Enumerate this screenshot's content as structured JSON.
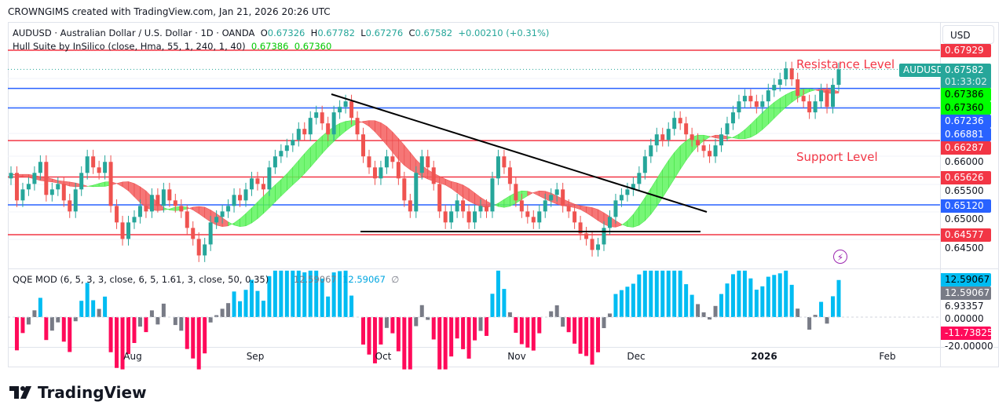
{
  "header": "CROWNGIMS created with TradingView.com, Jan 21, 2026 20:26 UTC",
  "symbol_legend": {
    "title": "AUDUSD · Australian Dollar / U.S. Dollar · 1D · OANDA",
    "o_label": "O",
    "o": "0.67326",
    "h_label": "H",
    "h": "0.67782",
    "l_label": "L",
    "l": "0.67276",
    "c_label": "C",
    "c": "0.67582",
    "change": "+0.00210 (+0.31%)"
  },
  "hull_legend": {
    "title": "Hull Suite by InSilico (close, Hma, 55, 1, 240, 1, 40)",
    "v1": "0.67386",
    "v2": "0.67360"
  },
  "qqe_legend": {
    "title": "QQE MOD (6, 5, 3, 3, close, 6, 5, 1.61, 3, close, 50, 0.35)",
    "v1": "12.59067",
    "v2": "12.59067",
    "v3": "∅"
  },
  "currency_button": "USD",
  "symbol_tag": "AUDUSD",
  "annotations": {
    "resistance": "Resistance Level",
    "support": "Support Level"
  },
  "price_labels": [
    {
      "value": "0.67929",
      "color": "#f23645"
    },
    {
      "value": "0.67582",
      "sub": "01:33:02",
      "color": "#26a69a"
    },
    {
      "value": "0.67386",
      "color": "#00ff00",
      "text": "#000"
    },
    {
      "value": "0.67360",
      "color": "#00ff00",
      "text": "#000"
    },
    {
      "value": "0.67236",
      "color": "#2962ff"
    },
    {
      "value": "0.66881",
      "color": "#2962ff"
    },
    {
      "value": "0.66287",
      "color": "#f23645"
    },
    {
      "value": "0.65626",
      "color": "#f23645"
    },
    {
      "value": "0.65120",
      "color": "#2962ff"
    },
    {
      "value": "0.64577",
      "color": "#f23645"
    }
  ],
  "price_ticks": [
    "0.66000",
    "0.65500",
    "0.65000",
    "0.64500"
  ],
  "qqe_labels": [
    {
      "value": "12.59067",
      "color": "#00bcf2",
      "text": "#000"
    },
    {
      "value": "12.59067",
      "color": "#787b86",
      "text": "#fff"
    },
    {
      "value": "-11.73825",
      "color": "#ff0a5a",
      "text": "#fff"
    }
  ],
  "qqe_ticks": [
    "6.93357",
    "0.00000",
    "-20.00000"
  ],
  "time_labels": [
    "Aug",
    "Sep",
    "Oct",
    "Nov",
    "Dec",
    "2026",
    "Feb"
  ],
  "footer_logo": "TradingView",
  "chart_data": {
    "type": "candlestick",
    "symbol": "AUDUSD",
    "interval": "1D",
    "x_range": [
      "Jul 2025",
      "Jan 21, 2026"
    ],
    "ylim": [
      0.641,
      0.6815
    ],
    "closes": [
      0.657,
      0.652,
      0.654,
      0.655,
      0.657,
      0.659,
      0.653,
      0.654,
      0.655,
      0.652,
      0.65,
      0.654,
      0.657,
      0.66,
      0.658,
      0.657,
      0.659,
      0.651,
      0.648,
      0.645,
      0.648,
      0.649,
      0.651,
      0.65,
      0.653,
      0.651,
      0.654,
      0.652,
      0.651,
      0.65,
      0.647,
      0.645,
      0.642,
      0.644,
      0.648,
      0.649,
      0.65,
      0.651,
      0.653,
      0.652,
      0.654,
      0.656,
      0.655,
      0.654,
      0.658,
      0.66,
      0.661,
      0.662,
      0.663,
      0.665,
      0.664,
      0.667,
      0.668,
      0.666,
      0.664,
      0.668,
      0.669,
      0.67,
      0.667,
      0.664,
      0.66,
      0.658,
      0.656,
      0.658,
      0.66,
      0.659,
      0.656,
      0.652,
      0.65,
      0.657,
      0.66,
      0.658,
      0.655,
      0.65,
      0.648,
      0.65,
      0.652,
      0.65,
      0.648,
      0.65,
      0.651,
      0.65,
      0.656,
      0.66,
      0.658,
      0.655,
      0.652,
      0.65,
      0.649,
      0.648,
      0.65,
      0.652,
      0.653,
      0.654,
      0.651,
      0.65,
      0.648,
      0.646,
      0.645,
      0.643,
      0.644,
      0.647,
      0.649,
      0.652,
      0.653,
      0.654,
      0.655,
      0.657,
      0.66,
      0.662,
      0.664,
      0.663,
      0.665,
      0.667,
      0.666,
      0.664,
      0.663,
      0.662,
      0.661,
      0.66,
      0.662,
      0.664,
      0.666,
      0.668,
      0.67,
      0.671,
      0.67,
      0.669,
      0.67,
      0.672,
      0.673,
      0.674,
      0.676,
      0.674,
      0.671,
      0.67,
      0.668,
      0.67,
      0.672,
      0.669,
      0.673,
      0.67582
    ],
    "horizontal_levels": [
      {
        "price": 0.67929,
        "color": "#f23645"
      },
      {
        "price": 0.67236,
        "color": "#2962ff"
      },
      {
        "price": 0.66881,
        "color": "#2962ff"
      },
      {
        "price": 0.66287,
        "color": "#f23645"
      },
      {
        "price": 0.65626,
        "color": "#f23645"
      },
      {
        "price": 0.6512,
        "color": "#2962ff"
      },
      {
        "price": 0.64577,
        "color": "#f23645"
      }
    ],
    "trendlines": [
      {
        "name": "descending-resistance",
        "from": [
          "Sep 18",
          0.67
        ],
        "to": [
          "Nov 28",
          0.6491
        ]
      },
      {
        "name": "horizontal-support",
        "from": [
          "Sep 23",
          0.6469
        ],
        "to": [
          "Nov 28",
          0.6469
        ]
      }
    ],
    "up_color": "#26a69a",
    "down_color": "#ef5350",
    "hull_colors": {
      "up": "#00ff00",
      "down": "#ff0000"
    },
    "qqe_colors": {
      "positive": "#00bcf2",
      "neutral": "#787b86",
      "negative": "#ff0a5a"
    },
    "qqe_ylim": [
      -20,
      12.6
    ]
  }
}
